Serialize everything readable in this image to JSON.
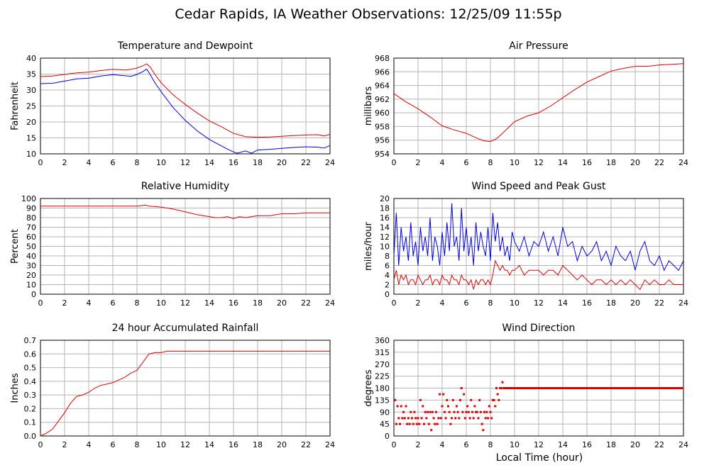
{
  "page": {
    "title": "Cedar Rapids, IA Weather Observations: 12/25/09 11:55p",
    "xlabel": "Local Time (hour)"
  },
  "colors": {
    "red": "#e00000",
    "blue": "#0000e0",
    "grid": "#b4b4b4",
    "frame": "#000000"
  },
  "chart_data": [
    {
      "id": "temp",
      "type": "line",
      "title": "Temperature and Dewpoint",
      "ylabel": "Fahrenheit",
      "xlim": [
        0,
        24
      ],
      "ylim": [
        10,
        40
      ],
      "xticks": [
        0,
        2,
        4,
        6,
        8,
        10,
        12,
        14,
        16,
        18,
        20,
        22,
        24
      ],
      "yticks": [
        10,
        15,
        20,
        25,
        30,
        35,
        40
      ],
      "series": [
        {
          "color": "#e00000",
          "x": [
            0,
            1,
            2,
            3,
            4,
            5,
            6,
            7,
            7.5,
            8,
            8.5,
            8.8,
            9.1,
            9.5,
            10,
            11,
            12,
            13,
            14,
            15,
            16,
            17,
            18,
            19,
            20,
            21,
            22,
            23,
            23.5,
            24
          ],
          "y": [
            34.2,
            34.4,
            34.9,
            35.4,
            35.6,
            36.1,
            36.5,
            36.3,
            36.5,
            36.9,
            37.6,
            38.2,
            37.2,
            34.8,
            32.3,
            28.5,
            25.5,
            22.8,
            20.3,
            18.5,
            16.4,
            15.4,
            15.2,
            15.3,
            15.5,
            15.7,
            15.9,
            16.0,
            15.6,
            16.1
          ]
        },
        {
          "color": "#0000e0",
          "x": [
            0,
            1,
            2,
            3,
            4,
            5,
            6,
            7,
            7.5,
            8,
            8.5,
            8.8,
            9.1,
            9.5,
            10,
            11,
            12,
            13,
            14,
            15,
            15.5,
            16,
            16.3,
            17,
            17.5,
            18,
            19,
            20,
            21,
            22,
            23,
            23.5,
            24
          ],
          "y": [
            32.0,
            32.1,
            32.8,
            33.5,
            33.7,
            34.4,
            34.8,
            34.5,
            34.3,
            34.9,
            35.8,
            36.6,
            34.8,
            32.2,
            29.5,
            24.5,
            20.5,
            17.2,
            14.5,
            12.5,
            11.5,
            10.6,
            10.2,
            10.9,
            10.2,
            11.2,
            11.4,
            11.7,
            12.0,
            12.2,
            12.1,
            11.8,
            12.6
          ]
        }
      ]
    },
    {
      "id": "pressure",
      "type": "line",
      "title": "Air Pressure",
      "ylabel": "millibars",
      "xlim": [
        0,
        24
      ],
      "ylim": [
        954,
        968
      ],
      "xticks": [
        0,
        2,
        4,
        6,
        8,
        10,
        12,
        14,
        16,
        18,
        20,
        22,
        24
      ],
      "yticks": [
        954,
        956,
        958,
        960,
        962,
        964,
        966,
        968
      ],
      "series": [
        {
          "color": "#e00000",
          "x": [
            0,
            1,
            2,
            3,
            4,
            5,
            6,
            7,
            7.5,
            8,
            8.5,
            9,
            10,
            11,
            12,
            13,
            14,
            15,
            16,
            17,
            18,
            19,
            20,
            21,
            22,
            23,
            24
          ],
          "y": [
            962.8,
            961.6,
            960.6,
            959.4,
            958.1,
            957.5,
            957.0,
            956.2,
            955.9,
            955.8,
            956.2,
            957.0,
            958.7,
            959.5,
            960.0,
            961.0,
            962.2,
            963.4,
            964.5,
            965.3,
            966.1,
            966.5,
            966.8,
            966.8,
            967.0,
            967.1,
            967.2
          ]
        }
      ]
    },
    {
      "id": "rh",
      "type": "line",
      "title": "Relative Humidity",
      "ylabel": "Percent",
      "xlim": [
        0,
        24
      ],
      "ylim": [
        0,
        100
      ],
      "xticks": [
        0,
        2,
        4,
        6,
        8,
        10,
        12,
        14,
        16,
        18,
        20,
        22,
        24
      ],
      "yticks": [
        0,
        10,
        20,
        30,
        40,
        50,
        60,
        70,
        80,
        90,
        100
      ],
      "series": [
        {
          "color": "#e00000",
          "x": [
            0,
            2,
            4,
            6,
            8,
            8.7,
            9,
            10,
            11,
            12,
            13,
            14,
            14.5,
            15,
            15.5,
            16,
            16.5,
            17,
            17.5,
            18,
            19,
            20,
            21,
            22,
            23,
            24
          ],
          "y": [
            92,
            92,
            92,
            92,
            92,
            93,
            92,
            91,
            89,
            86,
            83,
            81,
            80,
            80,
            81,
            79,
            81,
            80,
            81,
            82,
            82,
            84,
            84,
            85,
            85,
            85
          ]
        }
      ]
    },
    {
      "id": "wind",
      "type": "line",
      "title": "Wind Speed and Peak Gust",
      "ylabel": "miles/hour",
      "xlim": [
        0,
        24
      ],
      "ylim": [
        0,
        20
      ],
      "xticks": [
        0,
        2,
        4,
        6,
        8,
        10,
        12,
        14,
        16,
        18,
        20,
        22,
        24
      ],
      "yticks": [
        0,
        2,
        4,
        6,
        8,
        10,
        12,
        14,
        16,
        18,
        20
      ],
      "series": [
        {
          "color": "#0000e0",
          "x": [
            0,
            0.2,
            0.4,
            0.6,
            0.8,
            1,
            1.2,
            1.4,
            1.6,
            1.8,
            2,
            2.2,
            2.4,
            2.6,
            2.8,
            3,
            3.2,
            3.4,
            3.6,
            3.8,
            4,
            4.2,
            4.4,
            4.6,
            4.8,
            5,
            5.2,
            5.4,
            5.6,
            5.8,
            6,
            6.2,
            6.4,
            6.6,
            6.8,
            7,
            7.2,
            7.4,
            7.6,
            7.8,
            8,
            8.2,
            8.4,
            8.6,
            8.8,
            9,
            9.2,
            9.4,
            9.6,
            9.8,
            10,
            10.4,
            10.8,
            11.2,
            11.6,
            12,
            12.4,
            12.8,
            13.2,
            13.6,
            14,
            14.4,
            14.8,
            15.2,
            15.6,
            16,
            16.4,
            16.8,
            17.2,
            17.6,
            18,
            18.4,
            18.8,
            19.2,
            19.6,
            20,
            20.4,
            20.8,
            21.2,
            21.6,
            22,
            22.4,
            22.8,
            23.2,
            23.6,
            24
          ],
          "y": [
            8,
            17,
            6,
            14,
            9,
            12,
            7,
            15,
            8,
            11,
            6,
            14,
            9,
            12,
            8,
            16,
            7,
            12,
            10,
            6,
            13,
            8,
            15,
            9,
            19,
            10,
            12,
            7,
            18,
            9,
            14,
            8,
            12,
            6,
            15,
            9,
            13,
            10,
            8,
            14,
            7,
            17,
            11,
            15,
            9,
            12,
            8,
            10,
            7,
            13,
            11,
            9,
            12,
            8,
            11,
            10,
            13,
            9,
            12,
            8,
            14,
            10,
            11,
            7,
            10,
            8,
            9,
            11,
            7,
            9,
            6,
            10,
            8,
            7,
            9,
            5,
            9,
            11,
            7,
            6,
            8,
            5,
            7,
            6,
            5,
            7
          ]
        },
        {
          "color": "#e00000",
          "x": [
            0,
            0.2,
            0.4,
            0.6,
            0.8,
            1,
            1.2,
            1.4,
            1.6,
            1.8,
            2,
            2.2,
            2.4,
            2.6,
            2.8,
            3,
            3.2,
            3.4,
            3.6,
            3.8,
            4,
            4.2,
            4.4,
            4.6,
            4.8,
            5,
            5.2,
            5.4,
            5.6,
            5.8,
            6,
            6.2,
            6.4,
            6.6,
            6.8,
            7,
            7.2,
            7.4,
            7.6,
            7.8,
            8,
            8.2,
            8.4,
            8.6,
            8.8,
            9,
            9.2,
            9.4,
            9.6,
            9.8,
            10,
            10.4,
            10.8,
            11.2,
            11.6,
            12,
            12.4,
            12.8,
            13.2,
            13.6,
            14,
            14.4,
            14.8,
            15.2,
            15.6,
            16,
            16.4,
            16.8,
            17.2,
            17.6,
            18,
            18.4,
            18.8,
            19.2,
            19.6,
            20,
            20.4,
            20.8,
            21.2,
            21.6,
            22,
            22.4,
            22.8,
            23.2,
            23.6,
            24
          ],
          "y": [
            3,
            5,
            2,
            4,
            3,
            4,
            2,
            3,
            3,
            2,
            4,
            3,
            2,
            3,
            3,
            4,
            2,
            3,
            3,
            2,
            4,
            3,
            3,
            2,
            4,
            3,
            3,
            2,
            4,
            3,
            3,
            2,
            3,
            1,
            3,
            2,
            3,
            3,
            2,
            3,
            2,
            4,
            7,
            6,
            5,
            6,
            5,
            5,
            4,
            5,
            5,
            6,
            4,
            5,
            5,
            5,
            4,
            5,
            5,
            4,
            6,
            5,
            4,
            3,
            4,
            3,
            2,
            3,
            3,
            2,
            3,
            2,
            3,
            2,
            3,
            2,
            1,
            3,
            2,
            3,
            2,
            2,
            3,
            2,
            2,
            2
          ]
        }
      ]
    },
    {
      "id": "rain",
      "type": "line",
      "title": "24 hour Accumulated Rainfall",
      "ylabel": "Inches",
      "xlim": [
        0,
        24
      ],
      "ylim": [
        0,
        0.7
      ],
      "xticks": [
        0,
        2,
        4,
        6,
        8,
        10,
        12,
        14,
        16,
        18,
        20,
        22,
        24
      ],
      "yticks": [
        0.0,
        0.1,
        0.2,
        0.3,
        0.4,
        0.5,
        0.6,
        0.7
      ],
      "ytick_labels": [
        "0.0",
        "0.1",
        "0.2",
        "0.3",
        "0.4",
        "0.5",
        "0.6",
        "0.7"
      ],
      "series": [
        {
          "color": "#e00000",
          "x": [
            0,
            0.5,
            1,
            1.5,
            2,
            2.5,
            3,
            3.5,
            4,
            4.5,
            5,
            5.5,
            6,
            6.5,
            7,
            7.5,
            8,
            8.5,
            9,
            9.5,
            10,
            10.5,
            11,
            12,
            24
          ],
          "y": [
            0.0,
            0.02,
            0.05,
            0.11,
            0.17,
            0.24,
            0.29,
            0.3,
            0.32,
            0.35,
            0.37,
            0.38,
            0.39,
            0.41,
            0.43,
            0.46,
            0.48,
            0.54,
            0.6,
            0.61,
            0.61,
            0.62,
            0.62,
            0.62,
            0.62
          ]
        }
      ]
    },
    {
      "id": "winddir",
      "type": "scatter",
      "title": "Wind Direction",
      "ylabel": "degrees",
      "xlabel": "Local Time (hour)",
      "xlim": [
        0,
        24
      ],
      "ylim": [
        0,
        360
      ],
      "xticks": [
        0,
        2,
        4,
        6,
        8,
        10,
        12,
        14,
        16,
        18,
        20,
        22,
        24
      ],
      "yticks": [
        0,
        45,
        90,
        135,
        180,
        225,
        270,
        315,
        360
      ],
      "series": [
        {
          "color": "#e00000",
          "x": [
            0.1,
            0.2,
            0.3,
            0.4,
            0.5,
            0.6,
            0.7,
            0.8,
            0.9,
            1.0,
            1.1,
            1.2,
            1.3,
            1.4,
            1.5,
            1.6,
            1.7,
            1.8,
            1.9,
            2.0,
            2.1,
            2.2,
            2.3,
            2.4,
            2.5,
            2.6,
            2.7,
            2.8,
            2.9,
            3.0,
            3.1,
            3.2,
            3.3,
            3.4,
            3.5,
            3.6,
            3.7,
            3.8,
            3.9,
            4.0,
            4.1,
            4.2,
            4.3,
            4.4,
            4.5,
            4.6,
            4.7,
            4.8,
            4.9,
            5.0,
            5.1,
            5.2,
            5.3,
            5.4,
            5.5,
            5.6,
            5.7,
            5.8,
            5.9,
            6.0,
            6.1,
            6.2,
            6.3,
            6.4,
            6.5,
            6.6,
            6.7,
            6.8,
            6.9,
            7.0,
            7.1,
            7.2,
            7.3,
            7.4,
            7.5,
            7.6,
            7.7,
            7.8,
            7.9,
            8.0,
            8.1,
            8.2,
            8.3,
            8.4,
            8.5,
            8.6,
            8.7,
            8.8,
            8.9,
            9.0,
            9.1,
            9.2
          ],
          "y": [
            135,
            45,
            112,
            67,
            45,
            112,
            67,
            90,
            67,
            112,
            45,
            67,
            45,
            90,
            67,
            45,
            90,
            67,
            45,
            67,
            45,
            135,
            67,
            112,
            45,
            90,
            67,
            90,
            45,
            90,
            22,
            90,
            67,
            45,
            90,
            45,
            67,
            157,
            67,
            112,
            157,
            90,
            67,
            135,
            112,
            90,
            45,
            67,
            135,
            90,
            67,
            112,
            90,
            67,
            135,
            180,
            90,
            157,
            67,
            90,
            112,
            90,
            67,
            135,
            90,
            67,
            112,
            90,
            90,
            67,
            135,
            90,
            45,
            22,
            90,
            67,
            90,
            67,
            112,
            90,
            67,
            135,
            135,
            112,
            180,
            157,
            135,
            180,
            180,
            202,
            180,
            180
          ],
          "constant_from_x": 9.2,
          "constant_y": 180
        }
      ]
    }
  ]
}
